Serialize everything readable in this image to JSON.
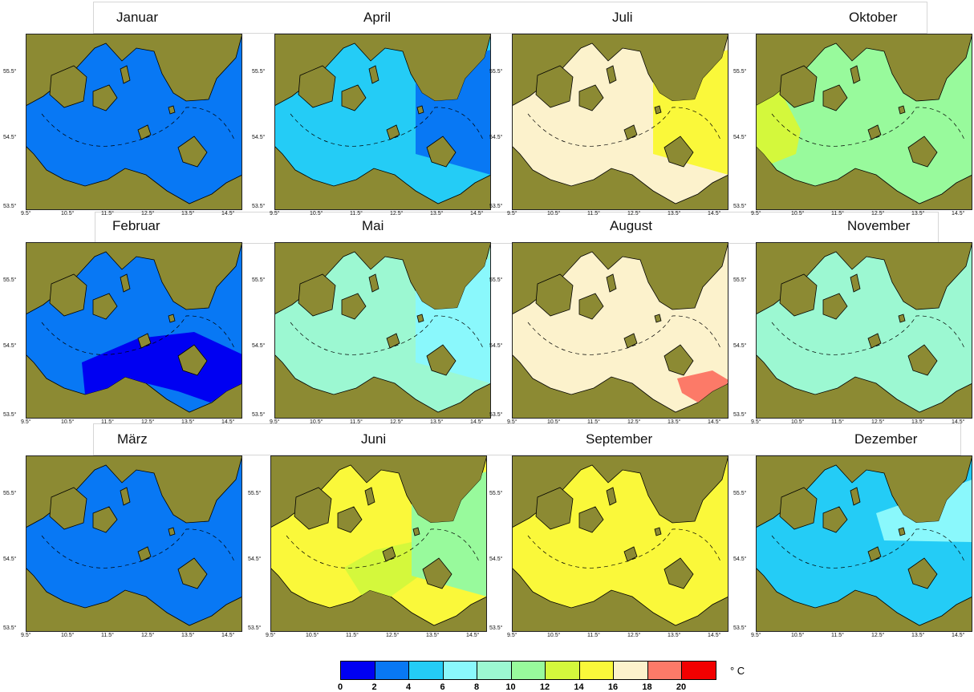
{
  "months": [
    "Januar",
    "Februar",
    "März",
    "April",
    "Mai",
    "Juni",
    "Juli",
    "August",
    "September",
    "Oktober",
    "November",
    "Dezember"
  ],
  "colors": {
    "land": "#8c8a33",
    "bins": [
      "#0000f2",
      "#0878f4",
      "#24ccf6",
      "#8af8fc",
      "#9cf8d2",
      "#98fa9c",
      "#d4f83c",
      "#faf83a",
      "#fcf2cc",
      "#fc7a68",
      "#f20000"
    ]
  },
  "legend": {
    "ticks": [
      "0",
      "2",
      "4",
      "6",
      "8",
      "10",
      "12",
      "14",
      "16",
      "18",
      "20"
    ],
    "unit": "° C"
  },
  "axes": {
    "y_ticks": [
      "55.5°",
      "54.5°",
      "53.5°"
    ],
    "x_ticks": [
      "9.5°",
      "10.5°",
      "11.5°",
      "12.5°",
      "13.5°",
      "14.5°"
    ]
  },
  "panels": [
    {
      "month": "Januar",
      "base_bin": 1,
      "zones": []
    },
    {
      "month": "Februar",
      "base_bin": 1,
      "zones": [
        {
          "bin": 0,
          "area": "southwest"
        }
      ]
    },
    {
      "month": "März",
      "base_bin": 1,
      "zones": []
    },
    {
      "month": "April",
      "base_bin": 2,
      "zones": [
        {
          "bin": 1,
          "area": "east"
        }
      ]
    },
    {
      "month": "Mai",
      "base_bin": 4,
      "zones": [
        {
          "bin": 3,
          "area": "east"
        }
      ]
    },
    {
      "month": "Juni",
      "base_bin": 7,
      "zones": [
        {
          "bin": 6,
          "area": "center"
        },
        {
          "bin": 5,
          "area": "east"
        }
      ]
    },
    {
      "month": "Juli",
      "base_bin": 8,
      "zones": [
        {
          "bin": 7,
          "area": "east"
        }
      ]
    },
    {
      "month": "August",
      "base_bin": 8,
      "zones": [
        {
          "bin": 9,
          "area": "southeast"
        }
      ]
    },
    {
      "month": "September",
      "base_bin": 7,
      "zones": []
    },
    {
      "month": "Oktober",
      "base_bin": 5,
      "zones": [
        {
          "bin": 6,
          "area": "west"
        }
      ]
    },
    {
      "month": "November",
      "base_bin": 4,
      "zones": []
    },
    {
      "month": "Dezember",
      "base_bin": 2,
      "zones": [
        {
          "bin": 3,
          "area": "northeast"
        }
      ]
    }
  ]
}
